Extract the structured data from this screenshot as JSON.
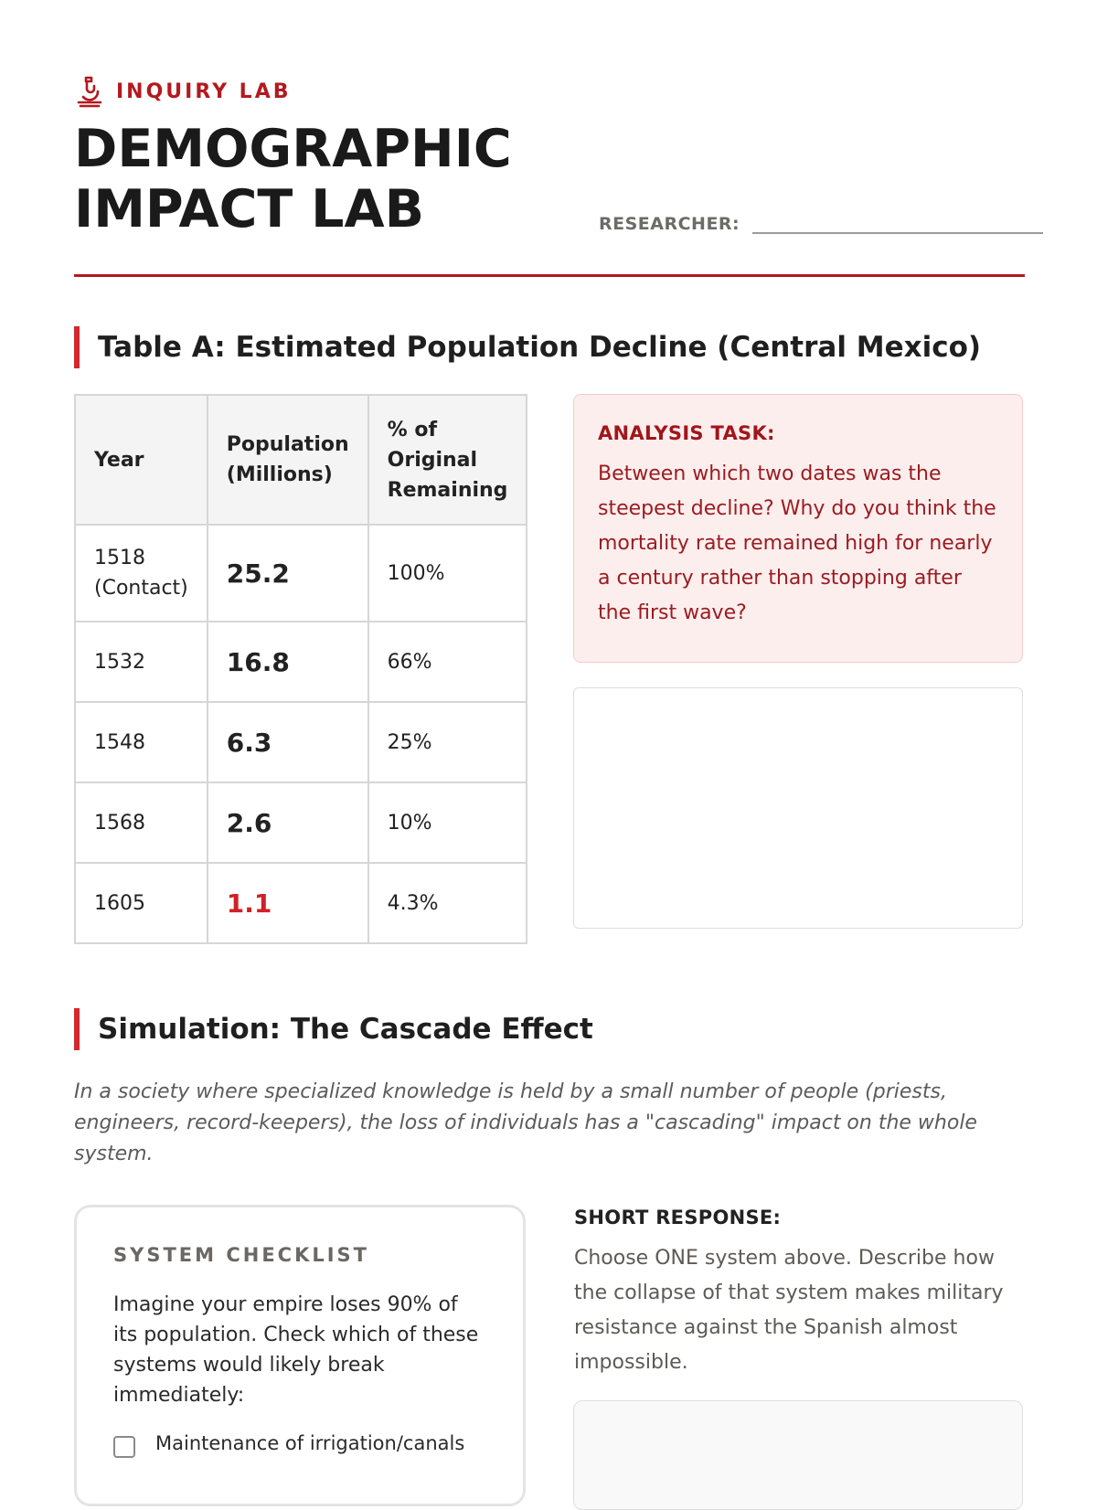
{
  "header": {
    "kicker": "INQUIRY LAB",
    "title_line1": "DEMOGRAPHIC",
    "title_line2": "IMPACT LAB",
    "researcher_label": "RESEARCHER:"
  },
  "table_section": {
    "heading": "Table A: Estimated Population Decline (Central Mexico)",
    "columns": [
      "Year",
      "Population (Millions)",
      "% of Original Remaining"
    ],
    "rows": [
      {
        "year": "1518 (Contact)",
        "population": "25.2",
        "percent": "100%"
      },
      {
        "year": "1532",
        "population": "16.8",
        "percent": "66%"
      },
      {
        "year": "1548",
        "population": "6.3",
        "percent": "25%"
      },
      {
        "year": "1568",
        "population": "2.6",
        "percent": "10%"
      },
      {
        "year": "1605",
        "population": "1.1",
        "percent": "4.3%"
      }
    ]
  },
  "analysis_task": {
    "heading": "ANALYSIS TASK:",
    "prompt": "Between which two dates was the steepest decline? Why do you think the mortality rate remained high for nearly a century rather than stopping after the first wave?"
  },
  "simulation_section": {
    "heading": "Simulation: The Cascade Effect",
    "intro": "In a society where specialized knowledge is held by a small number of people (priests, engineers, record-keepers), the loss of individuals has a \"cascading\" impact on the whole system."
  },
  "checklist": {
    "heading": "SYSTEM CHECKLIST",
    "prompt": "Imagine your empire loses 90% of its population. Check which of these systems would likely break immediately:",
    "items": [
      "Maintenance of irrigation/canals"
    ]
  },
  "short_response": {
    "heading": "SHORT RESPONSE:",
    "prompt": "Choose ONE system above. Describe how the collapse of that system makes military resistance against the Spanish almost impossible."
  },
  "colors": {
    "accent": "#b3191e",
    "accent_bright": "#d3282d",
    "task_bg": "#fdeeee"
  }
}
